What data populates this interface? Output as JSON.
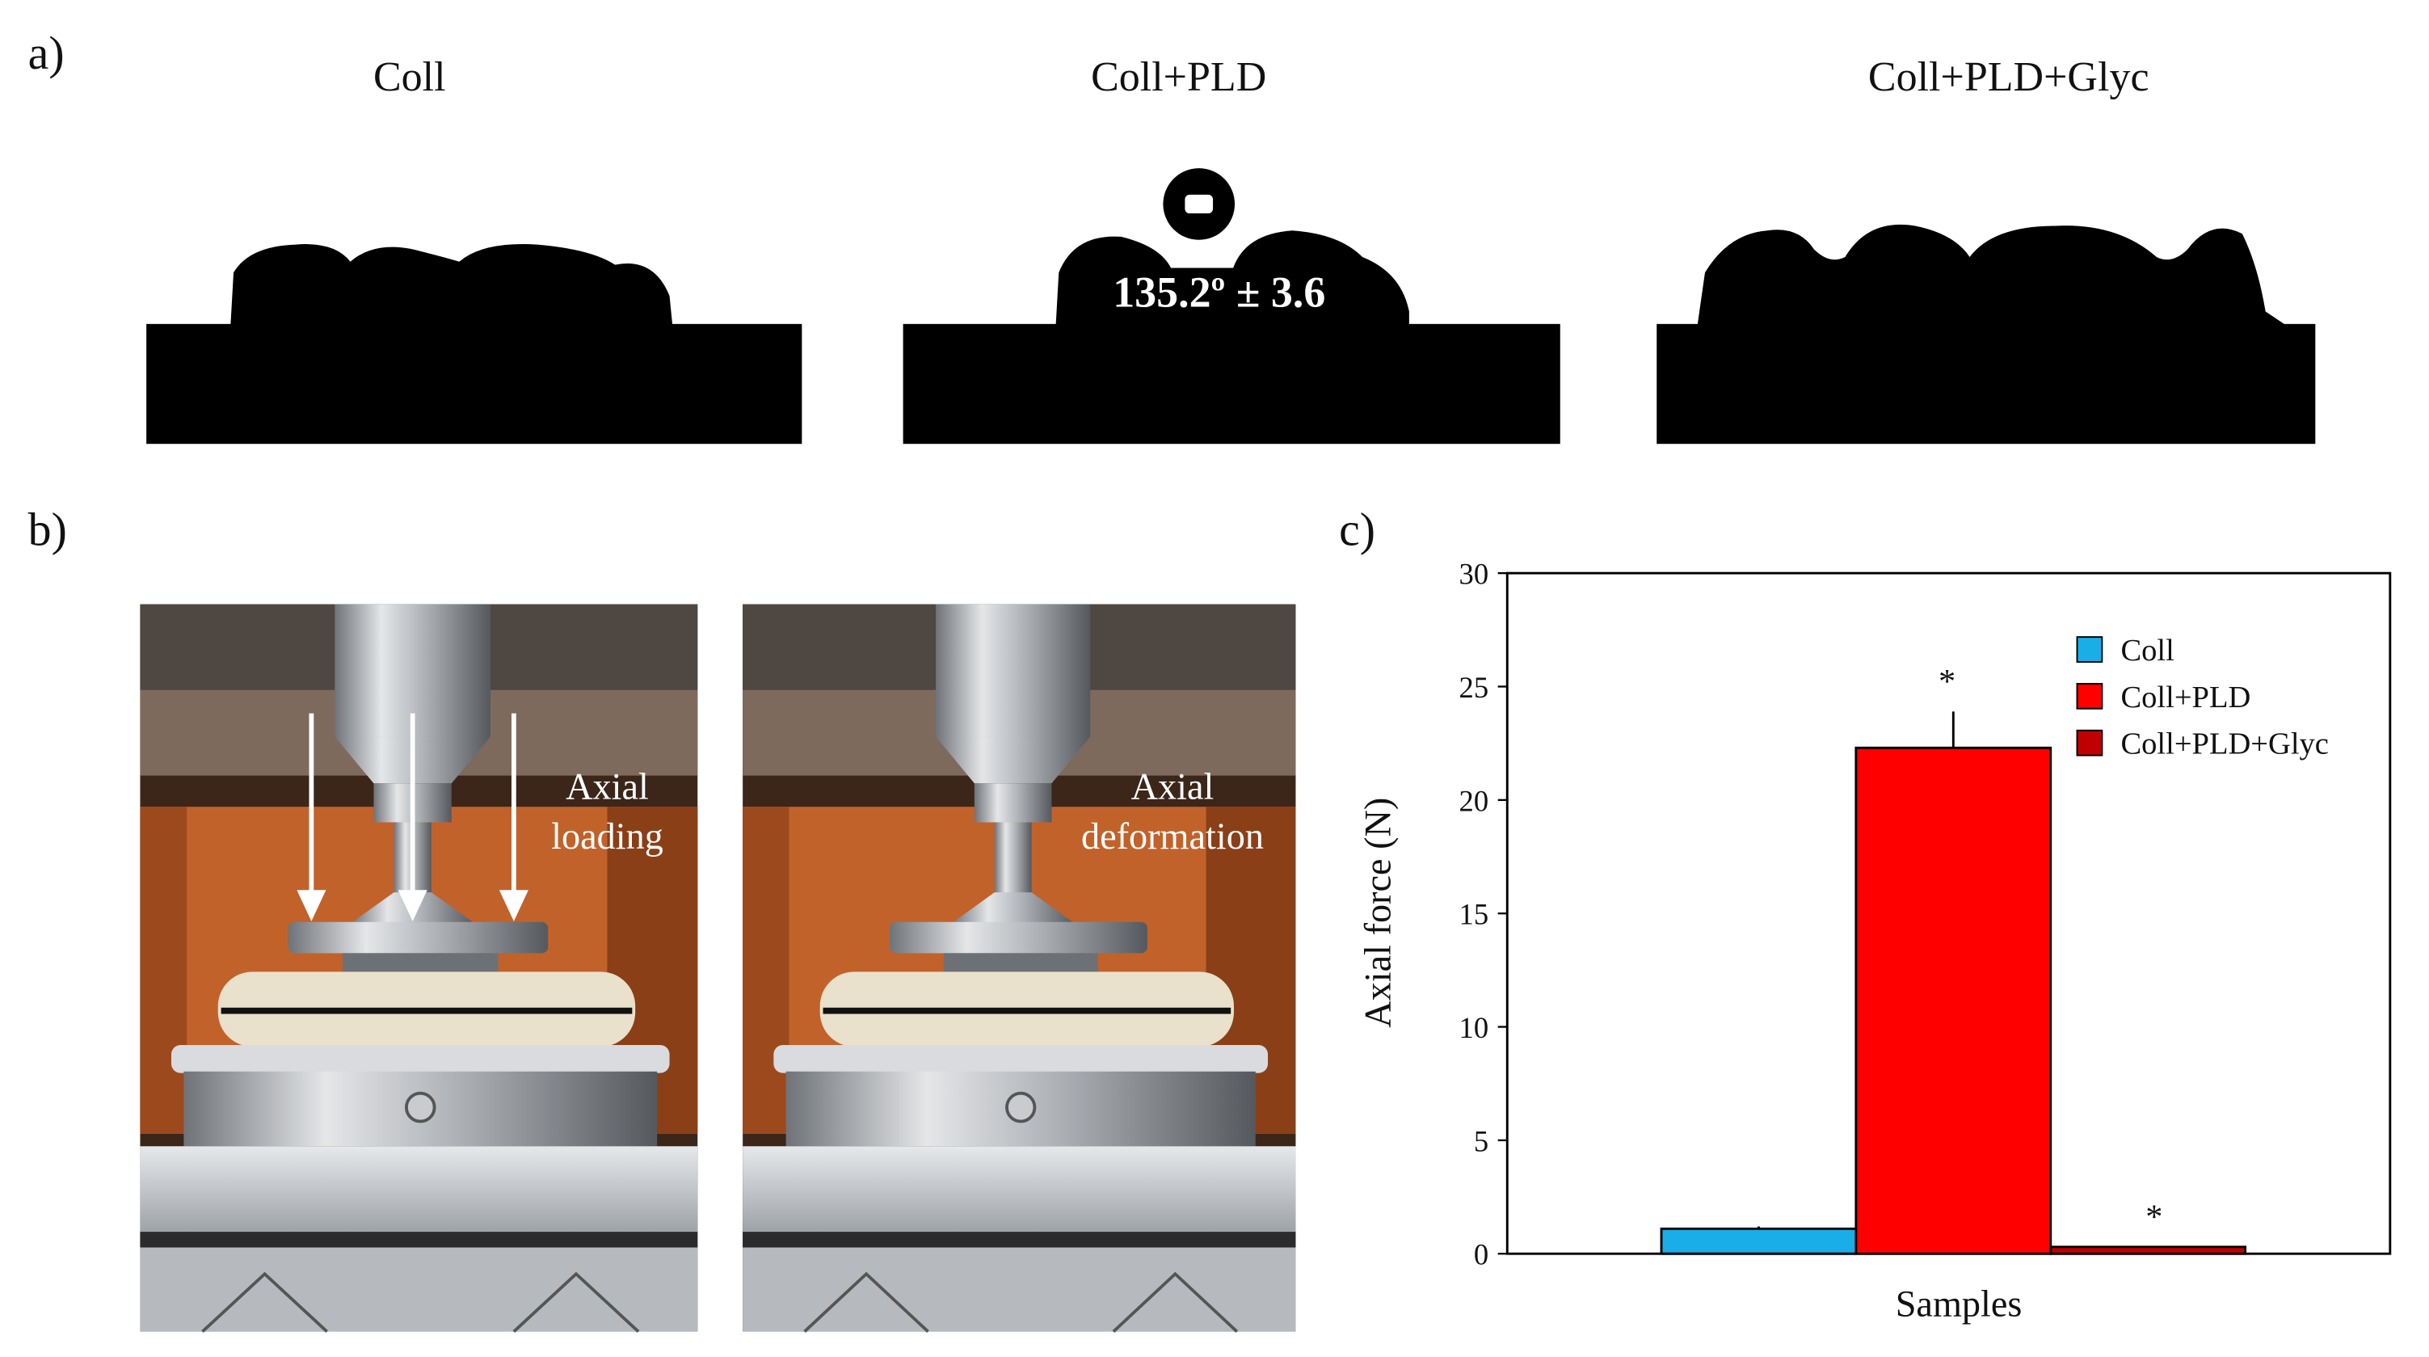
{
  "panels": {
    "a": {
      "label": "a)",
      "samples": [
        "Coll",
        "Coll+PLD",
        "Coll+PLD+Glyc"
      ],
      "contact_angle": "135.2º ± 3.6"
    },
    "b": {
      "label": "b)",
      "captions": [
        [
          "Axial",
          "loading"
        ],
        [
          "Axial",
          "deformation"
        ]
      ]
    },
    "c": {
      "label": "c)"
    }
  },
  "chart_data": {
    "type": "bar",
    "xlabel": "Samples",
    "ylabel": "Axial force (N)",
    "categories": [
      null
    ],
    "series": [
      {
        "name": "Coll",
        "color": "#1aaee8",
        "values": [
          1.1
        ],
        "errors": [
          0.1
        ]
      },
      {
        "name": "Coll+PLD",
        "color": "#ff0000",
        "values": [
          22.3
        ],
        "errors": [
          1.6
        ],
        "annotation": "*"
      },
      {
        "name": "Coll+PLD+Glyc",
        "color": "#c00000",
        "values": [
          0.3
        ],
        "errors": [
          0
        ],
        "annotation": "*"
      }
    ],
    "ylim": [
      0,
      30
    ],
    "yticks": [
      0,
      5,
      10,
      15,
      20,
      25,
      30
    ],
    "legend": "upper right"
  }
}
